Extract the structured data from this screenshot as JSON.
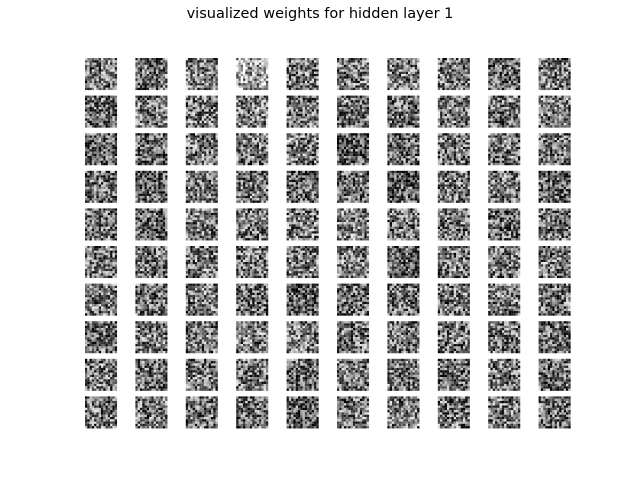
{
  "figure": {
    "title": "visualized weights for hidden layer 1"
  },
  "weights_grid": {
    "rows": 10,
    "cols": 10,
    "colormap": "gray",
    "tile_texture": "noise",
    "tile_mean_brightness": [
      [
        0.45,
        0.42,
        0.48,
        0.62,
        0.44,
        0.46,
        0.47,
        0.45,
        0.4,
        0.44
      ],
      [
        0.38,
        0.44,
        0.46,
        0.48,
        0.44,
        0.44,
        0.42,
        0.46,
        0.43,
        0.46
      ],
      [
        0.34,
        0.38,
        0.46,
        0.44,
        0.46,
        0.32,
        0.4,
        0.44,
        0.46,
        0.42
      ],
      [
        0.4,
        0.36,
        0.44,
        0.44,
        0.38,
        0.4,
        0.34,
        0.42,
        0.46,
        0.38
      ],
      [
        0.44,
        0.38,
        0.44,
        0.44,
        0.46,
        0.48,
        0.46,
        0.44,
        0.38,
        0.42
      ],
      [
        0.46,
        0.42,
        0.46,
        0.44,
        0.46,
        0.48,
        0.36,
        0.44,
        0.44,
        0.46
      ],
      [
        0.44,
        0.4,
        0.46,
        0.4,
        0.34,
        0.4,
        0.4,
        0.44,
        0.46,
        0.44
      ],
      [
        0.4,
        0.44,
        0.44,
        0.46,
        0.46,
        0.44,
        0.42,
        0.44,
        0.44,
        0.38
      ],
      [
        0.44,
        0.4,
        0.46,
        0.44,
        0.4,
        0.44,
        0.44,
        0.4,
        0.44,
        0.42
      ],
      [
        0.42,
        0.44,
        0.44,
        0.42,
        0.34,
        0.44,
        0.46,
        0.42,
        0.44,
        0.4
      ]
    ]
  }
}
